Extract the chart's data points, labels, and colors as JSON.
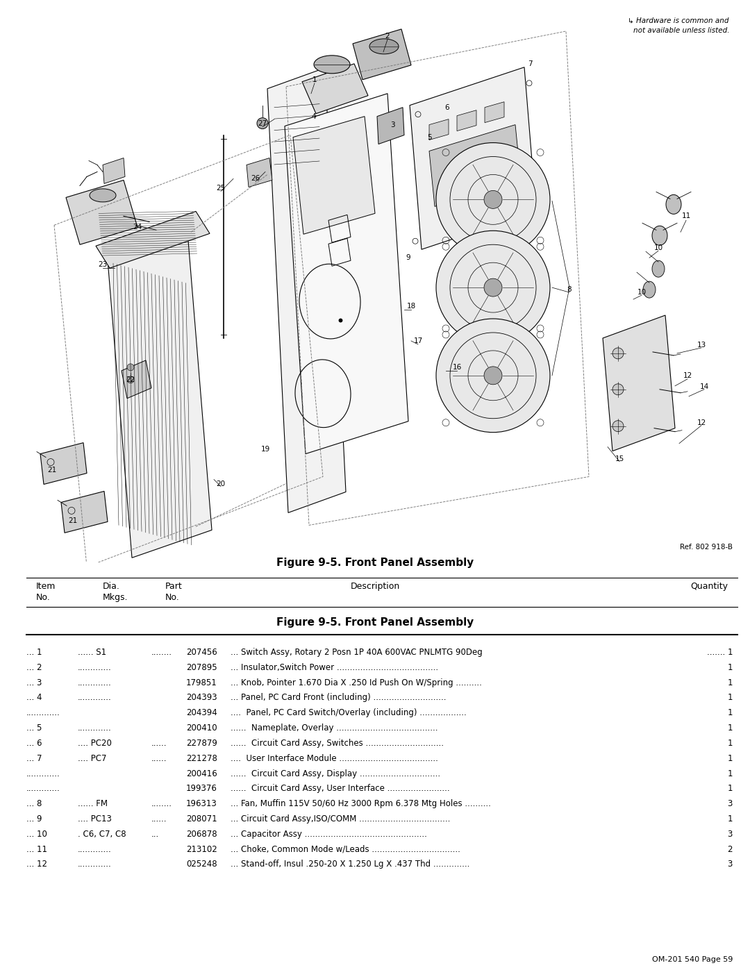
{
  "page_title": "Figure 9-5. Front Panel Assembly",
  "fig_ref": "Ref. 802 918-B",
  "hardware_note": "↳ Hardware is common and\nnot available unless listed.",
  "page_footer": "OM-201 540 Page 59",
  "sub_title": "Figure 9-5. Front Panel Assembly",
  "bg_color": "#ffffff"
}
